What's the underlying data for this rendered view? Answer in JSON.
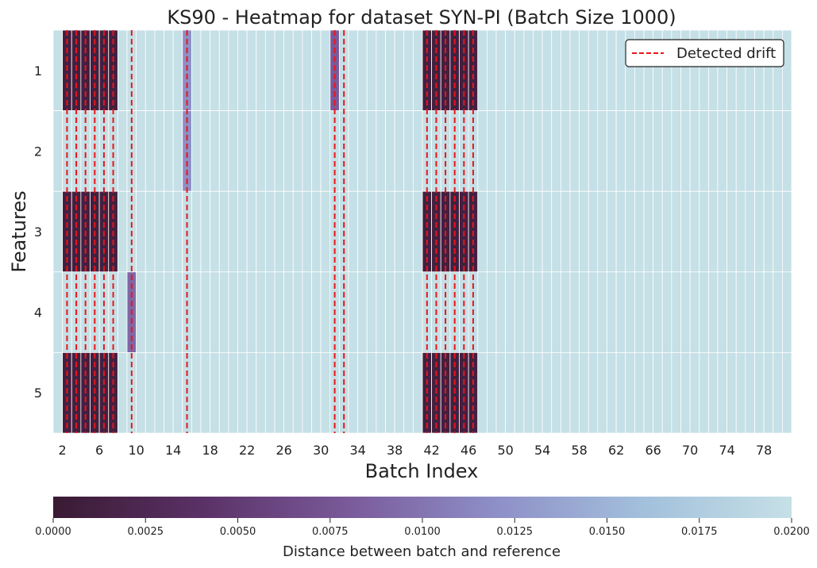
{
  "chart_data": {
    "type": "heatmap",
    "title": "KS90 - Heatmap for dataset SYN-PI (Batch Size 1000)",
    "xlabel": "Batch Index",
    "ylabel": "Features",
    "rows": [
      "1",
      "2",
      "3",
      "4",
      "5"
    ],
    "x_start": 1,
    "x_end": 80,
    "x_ticks": [
      2,
      6,
      10,
      14,
      18,
      22,
      26,
      30,
      34,
      38,
      42,
      46,
      50,
      54,
      58,
      62,
      66,
      70,
      74,
      78
    ],
    "default_value": 0.02,
    "cells": [
      {
        "row": 1,
        "batches": [
          2,
          3,
          4,
          5,
          6,
          7
        ],
        "value": 0.001
      },
      {
        "row": 1,
        "batches": [
          15
        ],
        "value": 0.012
      },
      {
        "row": 1,
        "batches": [
          31
        ],
        "value": 0.008
      },
      {
        "row": 1,
        "batches": [
          41,
          42,
          43,
          44,
          45,
          46
        ],
        "value": 0.001
      },
      {
        "row": 2,
        "batches": [
          15
        ],
        "value": 0.012
      },
      {
        "row": 3,
        "batches": [
          2,
          3,
          4,
          5,
          6,
          7
        ],
        "value": 0.001
      },
      {
        "row": 3,
        "batches": [
          41,
          42,
          43,
          44,
          45,
          46
        ],
        "value": 0.001
      },
      {
        "row": 4,
        "batches": [
          9
        ],
        "value": 0.009
      },
      {
        "row": 5,
        "batches": [
          2,
          3,
          4,
          5,
          6,
          7
        ],
        "value": 0.001
      },
      {
        "row": 5,
        "batches": [
          41,
          42,
          43,
          44,
          45,
          46
        ],
        "value": 0.001
      }
    ],
    "detected_drift": [
      2.5,
      3.5,
      4.5,
      5.5,
      6.5,
      7.5,
      9.5,
      15.5,
      31.5,
      32.5,
      41.5,
      42.5,
      43.5,
      44.5,
      45.5,
      46.5
    ],
    "colorbar": {
      "label": "Distance between batch and reference",
      "min": 0,
      "max": 0.02,
      "ticks": [
        "0.0000",
        "0.0025",
        "0.0050",
        "0.0075",
        "0.0100",
        "0.0125",
        "0.0150",
        "0.0175",
        "0.0200"
      ],
      "colors": [
        "#3a1a33",
        "#5a3166",
        "#7a5a9a",
        "#8e8fc7",
        "#a3c0dc",
        "#c5e0e6"
      ]
    },
    "legend": {
      "label": "Detected drift",
      "placement": "top-right",
      "color": "#e8161b"
    },
    "grid": true
  }
}
